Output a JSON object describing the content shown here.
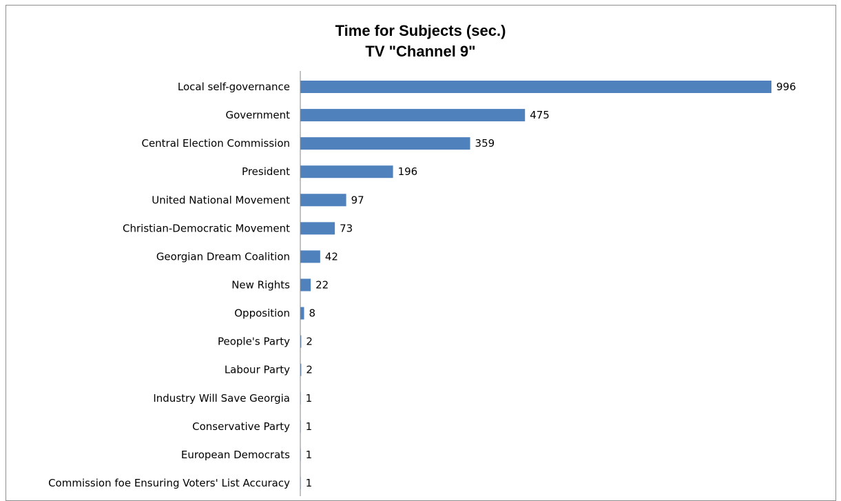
{
  "chart_data": {
    "type": "bar",
    "orientation": "horizontal",
    "title": "Time for Subjects (sec.)",
    "subtitle": "TV \"Channel 9\"",
    "categories": [
      "Local self-governance",
      "Government",
      "Central Election Commission",
      "President",
      "United National Movement",
      "Christian-Democratic Movement",
      "Georgian Dream Coalition",
      "New Rights",
      "Opposition",
      "People's Party",
      "Labour Party",
      "Industry Will Save Georgia",
      "Conservative Party",
      "European Democrats",
      "Commission foe Ensuring Voters' List Accuracy"
    ],
    "values": [
      996,
      475,
      359,
      196,
      97,
      73,
      42,
      22,
      8,
      2,
      2,
      1,
      1,
      1,
      1
    ],
    "data_labels": [
      "996",
      "475",
      "359",
      "196",
      "97",
      "73",
      "42",
      "22",
      "8",
      "2",
      "2",
      "1",
      "1",
      "1",
      "1"
    ],
    "xlim": [
      0,
      1000
    ],
    "grid": false,
    "legend": "none",
    "bar_color": "#4f81bd"
  }
}
